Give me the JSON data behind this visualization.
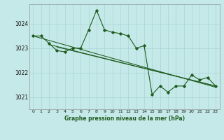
{
  "title": "Graphe pression niveau de la mer (hPa)",
  "bg_color": "#c5e8e8",
  "grid_color": "#b0d8d8",
  "line_color": "#1e5c1e",
  "xlim": [
    -0.5,
    23.5
  ],
  "ylim": [
    1020.5,
    1024.8
  ],
  "yticks": [
    1021,
    1022,
    1023,
    1024
  ],
  "series1_y": [
    1023.5,
    1023.5,
    1023.2,
    1022.9,
    1022.85,
    1023.0,
    1023.0,
    1023.75,
    1024.55,
    1023.75,
    1023.65,
    1023.6,
    1023.5,
    1023.0,
    1023.1,
    1021.1,
    1021.45,
    1021.2,
    1021.45,
    1021.45,
    1021.9,
    1021.7,
    1021.8,
    1021.45
  ],
  "trend1_x": [
    0,
    23
  ],
  "trend1_y": [
    1023.5,
    1021.4
  ],
  "trend2_x": [
    2,
    23
  ],
  "trend2_y": [
    1023.15,
    1021.45
  ],
  "trend3_x": [
    3,
    23
  ],
  "trend3_y": [
    1023.05,
    1021.45
  ],
  "xlabel": "Graphe pression niveau de la mer (hPa)",
  "xtick_labels": [
    "0",
    "1",
    "2",
    "3",
    "4",
    "5",
    "6",
    "7",
    "8",
    "9",
    "10",
    "11",
    "12",
    "13",
    "14",
    "15",
    "16",
    "17",
    "18",
    "19",
    "20",
    "21",
    "22",
    "23"
  ]
}
